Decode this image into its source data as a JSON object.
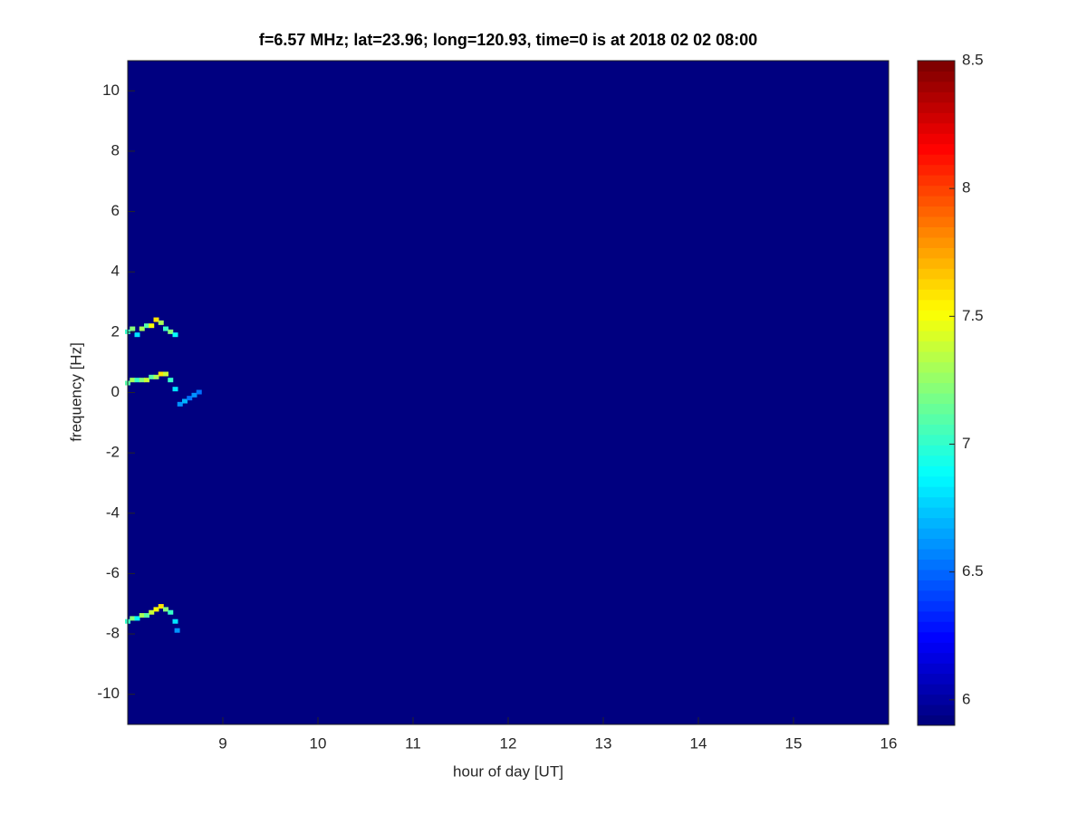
{
  "chart_data": {
    "type": "heatmap",
    "title": "f=6.57 MHz;  lat=23.96; long=120.93, time=0 is at 2018 02 02 08:00",
    "x_label": "hour of day [UT]",
    "y_label": "frequency [Hz]",
    "xlim": [
      8,
      16
    ],
    "xticks": [
      9,
      10,
      11,
      12,
      13,
      14,
      15,
      16
    ],
    "ylim": [
      -11,
      11
    ],
    "yticks": [
      -10,
      -8,
      -6,
      -4,
      -2,
      0,
      2,
      4,
      6,
      8,
      10
    ],
    "colormap": "jet",
    "clim": [
      5.9,
      8.5
    ],
    "cticks": [
      6,
      6.5,
      7,
      7.5,
      8,
      8.5
    ],
    "background": 5.9,
    "traces": [
      {
        "x": [
          8.0,
          8.05,
          8.1,
          8.15,
          8.2,
          8.25,
          8.3,
          8.35,
          8.4,
          8.45,
          8.5
        ],
        "y": [
          2.0,
          2.1,
          1.9,
          2.1,
          2.2,
          2.2,
          2.4,
          2.3,
          2.1,
          2.0,
          1.9
        ],
        "values": [
          7.0,
          7.2,
          6.8,
          7.3,
          7.1,
          7.5,
          7.6,
          7.3,
          7.0,
          7.2,
          6.9
        ]
      },
      {
        "x": [
          8.0,
          8.05,
          8.1,
          8.15,
          8.2,
          8.25,
          8.3,
          8.35,
          8.4,
          8.45,
          8.5,
          8.55,
          8.6,
          8.65,
          8.7,
          8.75
        ],
        "y": [
          0.3,
          0.4,
          0.4,
          0.4,
          0.4,
          0.5,
          0.5,
          0.6,
          0.6,
          0.4,
          0.1,
          -0.4,
          -0.3,
          -0.2,
          -0.1,
          0.0
        ],
        "values": [
          7.1,
          7.3,
          7.0,
          7.2,
          7.4,
          7.1,
          7.3,
          7.6,
          7.4,
          7.0,
          6.8,
          6.6,
          6.7,
          6.5,
          6.6,
          6.5
        ]
      },
      {
        "x": [
          8.0,
          8.05,
          8.1,
          8.15,
          8.2,
          8.25,
          8.3,
          8.35,
          8.4,
          8.45,
          8.5,
          8.52
        ],
        "y": [
          -7.6,
          -7.5,
          -7.5,
          -7.4,
          -7.4,
          -7.3,
          -7.2,
          -7.1,
          -7.2,
          -7.3,
          -7.6,
          -7.9
        ],
        "values": [
          7.0,
          7.2,
          6.9,
          7.3,
          7.1,
          7.4,
          7.5,
          7.6,
          7.2,
          7.0,
          6.8,
          6.6
        ]
      }
    ]
  }
}
